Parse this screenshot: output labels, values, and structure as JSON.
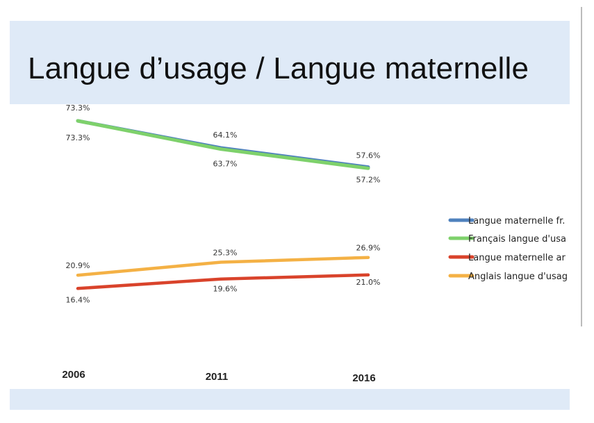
{
  "title": "Langue d’usage / Langue maternelle",
  "chart_data": {
    "type": "line",
    "categories": [
      "2006",
      "2011",
      "2016"
    ],
    "series": [
      {
        "name": "Langue maternelle fr.",
        "values": [
          73.3,
          64.1,
          57.6
        ],
        "labels": [
          "73.3%",
          "64.1%",
          "57.6%"
        ],
        "color": "#4f81bd"
      },
      {
        "name": "Français langue d'usa",
        "values": [
          73.3,
          63.7,
          57.2
        ],
        "labels": [
          "73.3%",
          "63.7%",
          "57.2%"
        ],
        "color": "#7ed16b"
      },
      {
        "name": "Langue maternelle ar",
        "values": [
          16.4,
          19.6,
          21.0
        ],
        "labels": [
          "16.4%",
          "19.6%",
          "21.0%"
        ],
        "color": "#d9432b"
      },
      {
        "name": "Anglais langue d'usag",
        "values": [
          20.9,
          25.3,
          26.9
        ],
        "labels": [
          "20.9%",
          "25.3%",
          "26.9%"
        ],
        "color": "#f4b145"
      }
    ],
    "legend_position": "right",
    "grid": false
  }
}
